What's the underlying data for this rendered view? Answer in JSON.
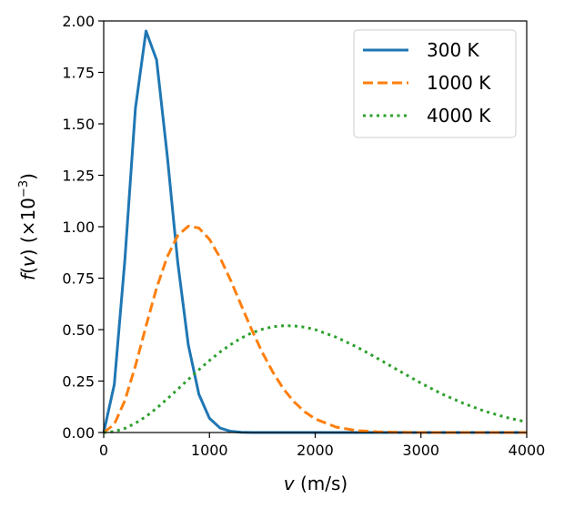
{
  "chart_data": {
    "type": "line",
    "title": "",
    "xlabel": {
      "var": "v",
      "unit": " (m/s)"
    },
    "ylabel": {
      "func": "f",
      "var": "v",
      "scale": " (×10",
      "exp": "−3",
      "close": ")"
    },
    "xlim": [
      0,
      4000
    ],
    "ylim": [
      0,
      2.0
    ],
    "xticks": [
      0,
      1000,
      2000,
      3000,
      4000
    ],
    "xtick_labels": [
      "0",
      "1000",
      "2000",
      "3000",
      "4000"
    ],
    "yticks": [
      0,
      0.25,
      0.5,
      0.75,
      1.0,
      1.25,
      1.5,
      1.75,
      2.0
    ],
    "ytick_labels": [
      "0.00",
      "0.25",
      "0.50",
      "0.75",
      "1.00",
      "1.25",
      "1.50",
      "1.75",
      "2.00"
    ],
    "grid": false,
    "legend_position": "top-right",
    "x": [
      0,
      100,
      200,
      300,
      400,
      500,
      600,
      700,
      800,
      900,
      1000,
      1100,
      1200,
      1300,
      1400,
      1500,
      1600,
      1700,
      1800,
      1900,
      2000,
      2200,
      2400,
      2600,
      2800,
      3000,
      3200,
      3400,
      3600,
      3800,
      4000
    ],
    "series": [
      {
        "name": "300 K",
        "color": "#1f77b4",
        "style": "solid",
        "values": [
          0,
          0.233,
          0.838,
          1.576,
          1.951,
          1.811,
          1.35,
          0.827,
          0.426,
          0.186,
          0.069,
          0.022,
          0.006,
          0.001,
          0,
          0,
          0,
          0,
          0,
          0,
          0,
          0,
          0,
          0,
          0,
          0,
          0,
          0,
          0,
          0,
          0
        ]
      },
      {
        "name": "1000 K",
        "color": "#ff7f0e",
        "style": "dashed",
        "values": [
          0,
          0.04,
          0.155,
          0.324,
          0.517,
          0.702,
          0.853,
          0.957,
          1.003,
          0.994,
          0.939,
          0.85,
          0.74,
          0.619,
          0.499,
          0.389,
          0.293,
          0.212,
          0.149,
          0.101,
          0.066,
          0.026,
          0.009,
          0.003,
          0.001,
          0,
          0,
          0,
          0,
          0,
          0
        ]
      },
      {
        "name": "4000 K",
        "color": "#2ca02c",
        "style": "dotted",
        "values": [
          0,
          0.005,
          0.02,
          0.045,
          0.078,
          0.118,
          0.163,
          0.21,
          0.258,
          0.305,
          0.35,
          0.391,
          0.427,
          0.459,
          0.484,
          0.502,
          0.514,
          0.519,
          0.518,
          0.512,
          0.5,
          0.463,
          0.414,
          0.357,
          0.298,
          0.24,
          0.187,
          0.142,
          0.104,
          0.074,
          0.051
        ]
      }
    ]
  }
}
